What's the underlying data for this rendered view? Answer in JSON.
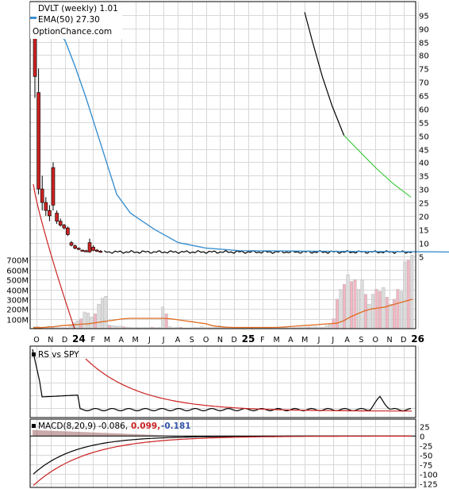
{
  "chart_data": {
    "type": "candlestick",
    "title": "DVLT (weekly) 1.01",
    "legend": {
      "ema_label": "EMA(50) 27.30",
      "source": "OptionChance.com"
    },
    "colors": {
      "ema": "#3a8fd0",
      "price_decline": "#cc2222",
      "volume_avg": "#e06a1e",
      "sell_curve_upper": "#000000",
      "sell_curve_lower": "#44cc44"
    },
    "x_months": [
      "O",
      "N",
      "D",
      "24",
      "F",
      "M",
      "A",
      "M",
      "J",
      "J",
      "A",
      "S",
      "O",
      "N",
      "D",
      "25",
      "F",
      "M",
      "A",
      "M",
      "J",
      "J",
      "A",
      "S",
      "O",
      "N",
      "D",
      "26"
    ],
    "price_axis": {
      "ticks": [
        5,
        10,
        15,
        20,
        25,
        30,
        35,
        40,
        45,
        50,
        55,
        60,
        65,
        70,
        75,
        80,
        85,
        90,
        95
      ],
      "range": [
        1,
        97
      ]
    },
    "volume_axis": {
      "ticks": [
        "100M",
        "200M",
        "300M",
        "400M",
        "500M",
        "600M",
        "700M"
      ],
      "range_millions": [
        0,
        760
      ]
    },
    "price_candles": [
      [
        92,
        97,
        64,
        72
      ],
      [
        66,
        75,
        28,
        30
      ],
      [
        30,
        35,
        22,
        25
      ],
      [
        25,
        27,
        20,
        22
      ],
      [
        22,
        24,
        18,
        20
      ],
      [
        38,
        40,
        22,
        24
      ],
      [
        21,
        22,
        17,
        18
      ],
      [
        18,
        19,
        16,
        16.5
      ],
      [
        16.5,
        17,
        15,
        15.5
      ],
      [
        15.5,
        16,
        12.5,
        13
      ],
      [
        10,
        10.6,
        8.6,
        9
      ],
      [
        8.8,
        9.3,
        7.5,
        7.9
      ],
      [
        7.9,
        8.2,
        7.2,
        7.5
      ],
      [
        7.2,
        7.4,
        6.8,
        7
      ],
      [
        7,
        7.3,
        6.5,
        6.8
      ],
      [
        10,
        11.5,
        6.2,
        6.5
      ],
      [
        8.3,
        9,
        6.8,
        7.1
      ],
      [
        7.2,
        7.6,
        6.5,
        6.8
      ],
      [
        6.8,
        7.2,
        6.2,
        6.6
      ]
    ],
    "price_flat_level": 6.5,
    "ema50_price": [
      [
        0,
        90
      ],
      [
        3,
        93
      ],
      [
        6,
        91
      ],
      [
        9,
        85
      ],
      [
        12,
        75
      ],
      [
        15,
        64
      ],
      [
        18,
        52
      ],
      [
        21,
        40
      ],
      [
        24,
        28
      ],
      [
        28,
        21
      ],
      [
        35,
        15
      ],
      [
        42,
        10
      ],
      [
        50,
        8
      ],
      [
        60,
        7
      ],
      [
        80,
        6.8
      ],
      [
        110,
        6.6
      ],
      [
        140,
        6.3
      ],
      [
        160,
        6.0
      ],
      [
        175,
        5.5
      ],
      [
        185,
        6.1
      ]
    ],
    "sell_curve": [
      [
        64,
        96
      ],
      [
        68,
        85
      ],
      [
        73,
        72
      ],
      [
        78,
        61
      ],
      [
        84,
        50
      ],
      [
        92,
        44
      ],
      [
        100,
        38
      ],
      [
        109,
        32
      ],
      [
        118,
        27
      ]
    ],
    "volume_bars": {
      "values_millions": [
        20,
        20,
        15,
        10,
        25,
        15,
        10,
        10,
        10,
        8,
        40,
        60,
        80,
        100,
        170,
        160,
        120,
        150,
        250,
        310,
        330,
        35,
        30,
        25,
        25,
        20,
        15,
        12,
        10,
        10,
        10,
        10,
        10,
        15,
        10,
        12,
        220,
        150,
        20,
        10,
        12,
        15,
        8,
        8,
        8,
        10,
        10,
        20,
        10,
        10,
        10,
        15,
        30,
        20,
        10,
        10,
        12,
        10,
        8,
        8,
        8,
        8,
        10,
        10,
        10,
        10,
        10,
        10,
        10,
        10,
        10,
        10,
        10,
        10,
        10,
        12,
        14,
        16,
        18,
        20,
        15,
        12,
        30,
        40,
        100,
        300,
        400,
        450,
        550,
        480,
        500,
        400,
        500,
        350,
        250,
        350,
        400,
        380,
        420,
        320,
        250,
        300,
        400,
        380,
        680,
        700,
        750
      ],
      "avg_millions": [
        10,
        10,
        15,
        20,
        30,
        35,
        40,
        45,
        50,
        60,
        70,
        80,
        90,
        100,
        105,
        105,
        105,
        105,
        105,
        105,
        100,
        90,
        80,
        70,
        60,
        50,
        30,
        20,
        15,
        12,
        12,
        12,
        12,
        12,
        12,
        12,
        15,
        20,
        25,
        30,
        35,
        40,
        45,
        50,
        55,
        80,
        120,
        150,
        180,
        200,
        210,
        220,
        240,
        260,
        280,
        300
      ]
    },
    "rs_vs_spy": {
      "label": "RS vs SPY"
    },
    "macd": {
      "label": "MACD(8,20,9)",
      "macd": "-0.086,",
      "signal": "0.099,",
      "histogram": "-0.181",
      "ticks": [
        25,
        0,
        -25,
        -50,
        -75,
        -100,
        -125
      ],
      "range": [
        -135,
        32
      ]
    }
  }
}
